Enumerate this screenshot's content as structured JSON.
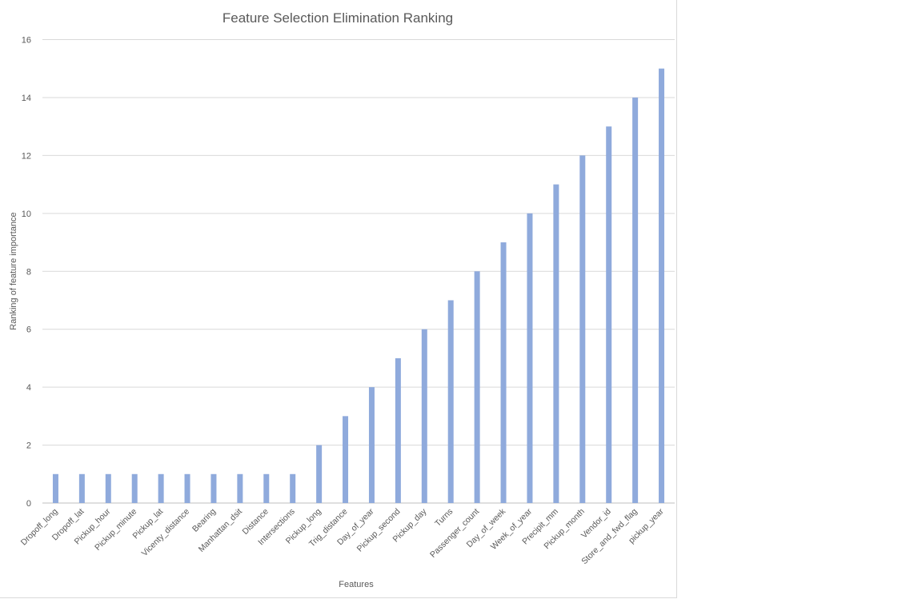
{
  "chart_data": {
    "type": "bar",
    "title": "Feature Selection Elimination Ranking",
    "xlabel": "Features",
    "ylabel": "Ranking of feature importance",
    "ylim": [
      0,
      16
    ],
    "y_ticks": [
      0,
      2,
      4,
      6,
      8,
      10,
      12,
      14,
      16
    ],
    "grid": true,
    "legend": "none",
    "bar_color": "#8faadc",
    "categories": [
      "Dropoff_long",
      "Dropoff_lat",
      "Pickup_hour",
      "Pickup_minute",
      "Pickup_lat",
      "Vicenty_distance",
      "Bearing",
      "Manhattan_dsit",
      "Distance",
      "Intersections",
      "Pickup_long",
      "Trig_distance",
      "Day_of_year",
      "Pickup_second",
      "Pickup_day",
      "Turns",
      "Passenger_count",
      "Day_of_week",
      "Week_of_year",
      "Precipit_mm",
      "Pickup_month",
      "Vendor_id",
      "Store_and_fwd_flag",
      "pickup_year"
    ],
    "values": [
      1,
      1,
      1,
      1,
      1,
      1,
      1,
      1,
      1,
      1,
      2,
      3,
      4,
      5,
      6,
      7,
      8,
      9,
      10,
      11,
      12,
      13,
      14,
      15
    ]
  }
}
